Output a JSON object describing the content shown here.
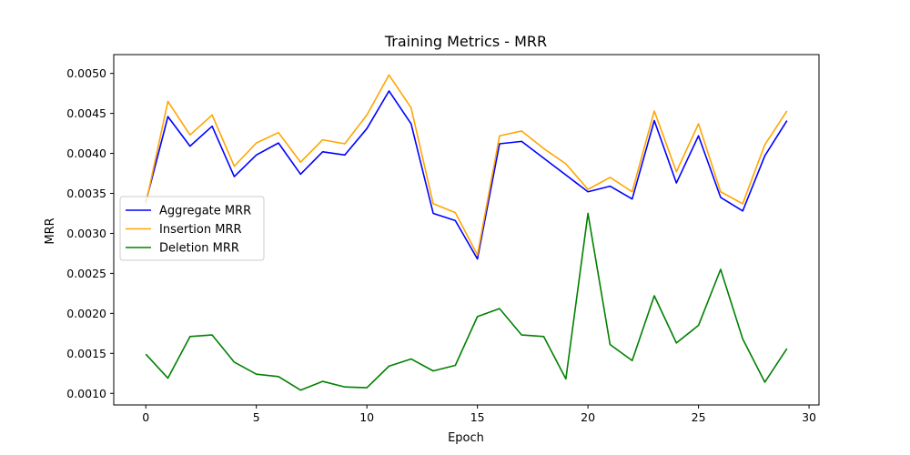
{
  "chart_data": {
    "type": "line",
    "title": "Training Metrics - MRR",
    "xlabel": "Epoch",
    "ylabel": "MRR",
    "xlim": [
      -1.45,
      30.45
    ],
    "ylim": [
      0.000855,
      0.005235
    ],
    "xticks": [
      0,
      5,
      10,
      15,
      20,
      25,
      30
    ],
    "yticks": [
      0.001,
      0.0015,
      0.002,
      0.0025,
      0.003,
      0.0035,
      0.004,
      0.0045,
      0.005
    ],
    "ytick_labels": [
      "0.0010",
      "0.0015",
      "0.0020",
      "0.0025",
      "0.0030",
      "0.0035",
      "0.0040",
      "0.0045",
      "0.0050"
    ],
    "grid": false,
    "legend_position": "center-left",
    "x": [
      0,
      1,
      2,
      3,
      4,
      5,
      6,
      7,
      8,
      9,
      10,
      11,
      12,
      13,
      14,
      15,
      16,
      17,
      18,
      19,
      20,
      21,
      22,
      23,
      24,
      25,
      26,
      27,
      28,
      29
    ],
    "series": [
      {
        "name": "Aggregate MRR",
        "color": "#0000ff",
        "values": [
          0.00339,
          0.00446,
          0.00409,
          0.00434,
          0.00371,
          0.00398,
          0.00413,
          0.00374,
          0.00402,
          0.00398,
          0.00431,
          0.00478,
          0.00437,
          0.00325,
          0.00316,
          0.00268,
          0.00412,
          0.00415,
          0.00394,
          0.00373,
          0.00352,
          0.00359,
          0.00343,
          0.00441,
          0.00363,
          0.00422,
          0.00345,
          0.00328,
          0.00397,
          0.00441
        ]
      },
      {
        "name": "Insertion MRR",
        "color": "#ffa500",
        "values": [
          0.00337,
          0.00465,
          0.00423,
          0.00448,
          0.00384,
          0.00413,
          0.00426,
          0.00389,
          0.00417,
          0.00412,
          0.00448,
          0.00498,
          0.00457,
          0.00337,
          0.00326,
          0.00273,
          0.00422,
          0.00428,
          0.00406,
          0.00387,
          0.00355,
          0.0037,
          0.00352,
          0.00453,
          0.00377,
          0.00437,
          0.00352,
          0.00337,
          0.00411,
          0.00453
        ]
      },
      {
        "name": "Deletion MRR",
        "color": "#008000",
        "values": [
          0.00149,
          0.00119,
          0.00171,
          0.00173,
          0.00139,
          0.00124,
          0.00121,
          0.00104,
          0.00115,
          0.00108,
          0.00107,
          0.00134,
          0.00143,
          0.00128,
          0.00135,
          0.00196,
          0.00206,
          0.00173,
          0.00171,
          0.00118,
          0.00325,
          0.00161,
          0.00141,
          0.00222,
          0.00163,
          0.00185,
          0.00255,
          0.00168,
          0.00114,
          0.00156
        ]
      }
    ]
  }
}
